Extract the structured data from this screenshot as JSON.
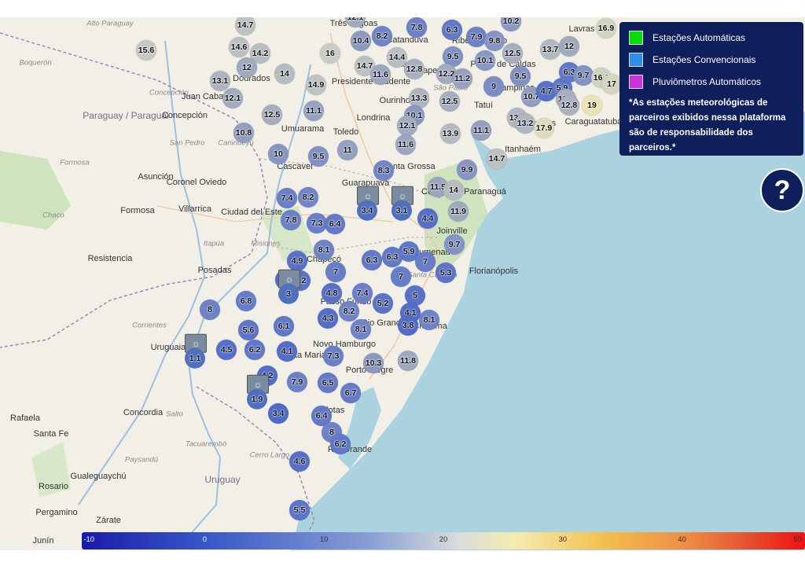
{
  "legend": {
    "items": [
      {
        "label": "Estações Automáticas",
        "color": "#00e000"
      },
      {
        "label": "Estações Convencionais",
        "color": "#2f8fe8"
      },
      {
        "label": "Pluviômetros Automáticos",
        "color": "#cc33dd"
      }
    ],
    "note": "*As estações meteorológicas de parceiros exibidos nessa plataforma são de responsabilidade dos parceiros.*",
    "bg": "#0f1f5c"
  },
  "help": {
    "label": "?"
  },
  "scale": {
    "ticks": [
      "-10",
      "0",
      "10",
      "20",
      "30",
      "40",
      "50"
    ]
  },
  "places": [
    {
      "t": "Alto Paraguay",
      "c": "ital"
    },
    {
      "t": "Boquerón",
      "c": "ital"
    },
    {
      "t": "Paraguay / Paraguai",
      "c": "country"
    },
    {
      "t": "Concepción",
      "c": "ital"
    },
    {
      "t": "Concepción",
      "c": "city"
    },
    {
      "t": "San Pedro",
      "c": "ital"
    },
    {
      "t": "Canindeyú",
      "c": "ital"
    },
    {
      "t": "Formosa",
      "c": "ital"
    },
    {
      "t": "Asunción",
      "c": "city"
    },
    {
      "t": "Coronel Oviedo",
      "c": "city"
    },
    {
      "t": "Chaco",
      "c": "ital"
    },
    {
      "t": "Formosa",
      "c": "city"
    },
    {
      "t": "Villarrica",
      "c": "city"
    },
    {
      "t": "Ciudad del Este",
      "c": "city"
    },
    {
      "t": "Itapúa",
      "c": "ital"
    },
    {
      "t": "Misiones",
      "c": "ital"
    },
    {
      "t": "Resistencia",
      "c": "city"
    },
    {
      "t": "Posadas",
      "c": "city"
    },
    {
      "t": "Corrientes",
      "c": "ital"
    },
    {
      "t": "Uruguaiana",
      "c": "city"
    },
    {
      "t": "Rafaela",
      "c": "city"
    },
    {
      "t": "Santa Fe",
      "c": "city"
    },
    {
      "t": "Concordia",
      "c": "city"
    },
    {
      "t": "Salto",
      "c": "ital"
    },
    {
      "t": "Tacuarembó",
      "c": "ital"
    },
    {
      "t": "Paysandú",
      "c": "ital"
    },
    {
      "t": "Gualeguaychú",
      "c": "city"
    },
    {
      "t": "Cerro Largo",
      "c": "ital"
    },
    {
      "t": "Uruguay",
      "c": "country"
    },
    {
      "t": "Rosario",
      "c": "city"
    },
    {
      "t": "Pergamino",
      "c": "city"
    },
    {
      "t": "Zárate",
      "c": "city"
    },
    {
      "t": "Junín",
      "c": "city"
    },
    {
      "t": "Dourados",
      "c": "city"
    },
    {
      "t": "Juan Caballero",
      "c": "city"
    },
    {
      "t": "Umuarama",
      "c": "city"
    },
    {
      "t": "Londrina",
      "c": "city"
    },
    {
      "t": "Toledo",
      "c": "city"
    },
    {
      "t": "Cascavel",
      "c": "city"
    },
    {
      "t": "Guarapuava",
      "c": "city"
    },
    {
      "t": "Ponta Grossa",
      "c": "city"
    },
    {
      "t": "Curitiba",
      "c": "city"
    },
    {
      "t": "Paranaguá",
      "c": "city"
    },
    {
      "t": "Joinville",
      "c": "city"
    },
    {
      "t": "Blumenau",
      "c": "city"
    },
    {
      "t": "Florianópolis",
      "c": "city"
    },
    {
      "t": "Chapecó",
      "c": "city"
    },
    {
      "t": "Santa Catarina",
      "c": "ital"
    },
    {
      "t": "Passo Fundo",
      "c": "city"
    },
    {
      "t": "Rio Grande do Sul",
      "c": "city"
    },
    {
      "t": "Novo Hamburgo",
      "c": "city"
    },
    {
      "t": "Santa Maria",
      "c": "city"
    },
    {
      "t": "Porto Alegre",
      "c": "city"
    },
    {
      "t": "Criciúma",
      "c": "city"
    },
    {
      "t": "Rio Grande",
      "c": "city"
    },
    {
      "t": "Pelotas",
      "c": "city"
    },
    {
      "t": "Presidente Prudente",
      "c": "city"
    },
    {
      "t": "Assis",
      "c": "city"
    },
    {
      "t": "Três Lagoas",
      "c": "city"
    },
    {
      "t": "Catanduva",
      "c": "city"
    },
    {
      "t": "Ribeirão Preto",
      "c": "city"
    },
    {
      "t": "São Paulo",
      "c": "ital"
    },
    {
      "t": "Campinas",
      "c": "city"
    },
    {
      "t": "Tatuí",
      "c": "city"
    },
    {
      "t": "Santos",
      "c": "city"
    },
    {
      "t": "Caraguatatuba",
      "c": "city"
    },
    {
      "t": "Itanhaém",
      "c": "city"
    },
    {
      "t": "Lavras",
      "c": "city"
    },
    {
      "t": "Poços de Caldas",
      "c": "city"
    },
    {
      "t": "Ourinhos",
      "c": "city"
    },
    {
      "t": "Itapeva",
      "c": "city"
    }
  ],
  "markers": [
    {
      "v": "14.7"
    },
    {
      "v": "15.6"
    },
    {
      "v": "14.6"
    },
    {
      "v": "14.2"
    },
    {
      "v": "16"
    },
    {
      "v": "12"
    },
    {
      "v": "14"
    },
    {
      "v": "13.1"
    },
    {
      "v": "12.1"
    },
    {
      "v": "14.9"
    },
    {
      "v": "12.5"
    },
    {
      "v": "11.1"
    },
    {
      "v": "10.8"
    },
    {
      "v": "10"
    },
    {
      "v": "9.5"
    },
    {
      "v": "11"
    },
    {
      "v": "12.1"
    },
    {
      "v": "10.4"
    },
    {
      "v": "8.2"
    },
    {
      "v": "7.8"
    },
    {
      "v": "14.7"
    },
    {
      "v": "11.6"
    },
    {
      "v": "14.4"
    },
    {
      "v": "12.8"
    },
    {
      "v": "13.3"
    },
    {
      "v": "10.1"
    },
    {
      "v": "12.1"
    },
    {
      "v": "11.6"
    },
    {
      "v": "8.3"
    },
    {
      "v": "6.3"
    },
    {
      "v": "7.9"
    },
    {
      "v": "9.8"
    },
    {
      "v": "9.5"
    },
    {
      "v": "10.1"
    },
    {
      "v": "12.5"
    },
    {
      "v": "12.2"
    },
    {
      "v": "11.2"
    },
    {
      "v": "9"
    },
    {
      "v": "12.5"
    },
    {
      "v": "13.9"
    },
    {
      "v": "11.1"
    },
    {
      "v": "9.9"
    },
    {
      "v": "14.7"
    },
    {
      "v": "10.2"
    },
    {
      "v": "13.7"
    },
    {
      "v": "12"
    },
    {
      "v": "16.9"
    },
    {
      "v": "9.5"
    },
    {
      "v": "10.7"
    },
    {
      "v": "4.7"
    },
    {
      "v": "5.9"
    },
    {
      "v": "6.3"
    },
    {
      "v": "9.7"
    },
    {
      "v": "16.6"
    },
    {
      "v": "17"
    },
    {
      "v": "12.6"
    },
    {
      "v": "12.8"
    },
    {
      "v": "19"
    },
    {
      "v": "13.5"
    },
    {
      "v": "13.2"
    },
    {
      "v": "17.9"
    },
    {
      "v": "11.5"
    },
    {
      "v": "14"
    },
    {
      "v": "11.9"
    },
    {
      "v": "7.4"
    },
    {
      "v": "8.2"
    },
    {
      "v": "7.8"
    },
    {
      "v": "7.3"
    },
    {
      "v": "6.4"
    },
    {
      "v": "5.9"
    },
    {
      "v": "4.4"
    },
    {
      "v": "9.7"
    },
    {
      "v": "8.1"
    },
    {
      "v": "4.9"
    },
    {
      "v": "6.3"
    },
    {
      "v": "6.3"
    },
    {
      "v": "7"
    },
    {
      "v": "7"
    },
    {
      "v": "5.3"
    },
    {
      "v": "4"
    },
    {
      "v": "5.2"
    },
    {
      "v": "7"
    },
    {
      "v": "8"
    },
    {
      "v": "6.8"
    },
    {
      "v": "4.8"
    },
    {
      "v": "7.4"
    },
    {
      "v": "5.2"
    },
    {
      "v": "5"
    },
    {
      "v": "8.2"
    },
    {
      "v": "4.3"
    },
    {
      "v": "8.1"
    },
    {
      "v": "4.1"
    },
    {
      "v": "3.8"
    },
    {
      "v": "8.1"
    },
    {
      "v": "5.6"
    },
    {
      "v": "6.1"
    },
    {
      "v": "4.5"
    },
    {
      "v": "6.2"
    },
    {
      "v": "4.1"
    },
    {
      "v": "7.3"
    },
    {
      "v": "10.3"
    },
    {
      "v": "11.8"
    },
    {
      "v": "4.2"
    },
    {
      "v": "7.9"
    },
    {
      "v": "6.5"
    },
    {
      "v": "6.7"
    },
    {
      "v": "3.4"
    },
    {
      "v": "6.4"
    },
    {
      "v": "8"
    },
    {
      "v": "6.2"
    },
    {
      "v": "4.6"
    },
    {
      "v": "5.5"
    }
  ],
  "conventional": [
    {
      "v": "3.4"
    },
    {
      "v": "3.1"
    },
    {
      "v": "3"
    },
    {
      "v": "1.1"
    },
    {
      "v": "1.9"
    }
  ]
}
